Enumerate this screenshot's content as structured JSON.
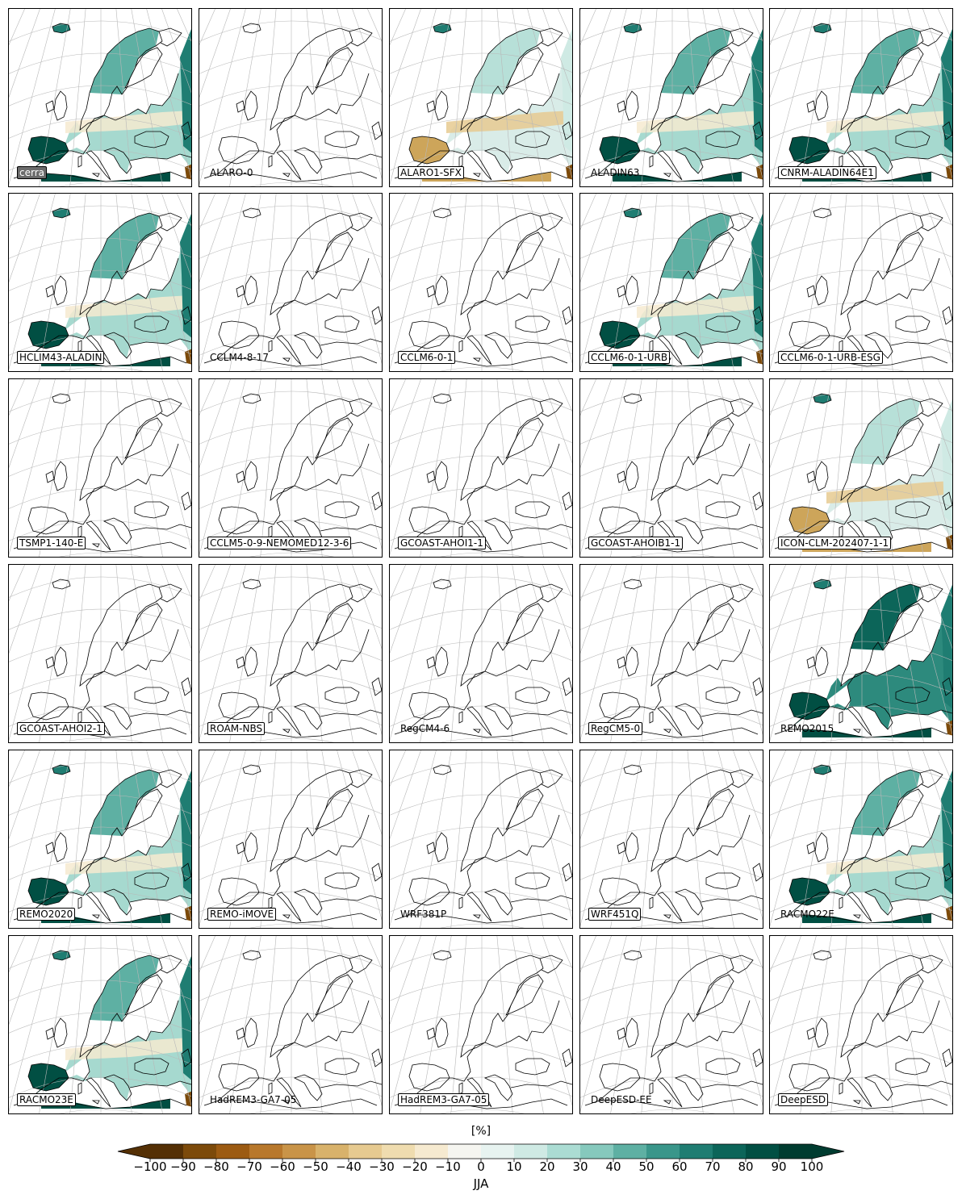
{
  "panels": [
    {
      "label": "cerra",
      "style": "ref",
      "fill": "pos"
    },
    {
      "label": "ALARO-0",
      "style": "plain",
      "fill": "none"
    },
    {
      "label": "ALARO1-SFX",
      "style": "boxed",
      "fill": "mixed"
    },
    {
      "label": "ALADIN63",
      "style": "plain",
      "fill": "pos"
    },
    {
      "label": "CNRM-ALADIN64E1",
      "style": "boxed",
      "fill": "pos"
    },
    {
      "label": "HCLIM43-ALADIN",
      "style": "boxed",
      "fill": "pos"
    },
    {
      "label": "CCLM4-8-17",
      "style": "plain",
      "fill": "none"
    },
    {
      "label": "CCLM6-0-1",
      "style": "boxed",
      "fill": "none"
    },
    {
      "label": "CCLM6-0-1-URB",
      "style": "boxed",
      "fill": "pos"
    },
    {
      "label": "CCLM6-0-1-URB-ESG",
      "style": "boxed",
      "fill": "none"
    },
    {
      "label": "TSMP1-140-E",
      "style": "boxed",
      "fill": "none"
    },
    {
      "label": "CCLM5-0-9-NEMOMED12-3-6",
      "style": "boxed",
      "fill": "none"
    },
    {
      "label": "GCOAST-AHOI1-1",
      "style": "boxed",
      "fill": "none"
    },
    {
      "label": "GCOAST-AHOIB1-1",
      "style": "boxed",
      "fill": "none"
    },
    {
      "label": "ICON-CLM-202407-1-1",
      "style": "boxed",
      "fill": "mixed"
    },
    {
      "label": "GCOAST-AHOI2-1",
      "style": "boxed",
      "fill": "none"
    },
    {
      "label": "ROAM-NBS",
      "style": "boxed",
      "fill": "none"
    },
    {
      "label": "RegCM4-6",
      "style": "plain",
      "fill": "none"
    },
    {
      "label": "RegCM5-0",
      "style": "boxed",
      "fill": "none"
    },
    {
      "label": "REMO2015",
      "style": "plain",
      "fill": "strong"
    },
    {
      "label": "REMO2020",
      "style": "boxed",
      "fill": "pos"
    },
    {
      "label": "REMO-iMOVE",
      "style": "boxed",
      "fill": "none"
    },
    {
      "label": "WRF381P",
      "style": "plain",
      "fill": "none"
    },
    {
      "label": "WRF451Q",
      "style": "boxed",
      "fill": "none"
    },
    {
      "label": "RACMO22E",
      "style": "plain",
      "fill": "pos"
    },
    {
      "label": "RACMO23E",
      "style": "boxed",
      "fill": "pos"
    },
    {
      "label": "HadREM3-GA7-05",
      "style": "plain",
      "fill": "none"
    },
    {
      "label": "HadREM3-GA7-05",
      "style": "boxed",
      "fill": "none"
    },
    {
      "label": "DeepESD-EE",
      "style": "plain",
      "fill": "none"
    },
    {
      "label": "DeepESD",
      "style": "boxed",
      "fill": "none"
    }
  ],
  "colorbar": {
    "units": "[%]",
    "season": "JJA",
    "ticks": [
      "−100",
      "−90",
      "−80",
      "−70",
      "−60",
      "−50",
      "−40",
      "−30",
      "−20",
      "−10",
      "0",
      "10",
      "20",
      "30",
      "40",
      "50",
      "60",
      "70",
      "80",
      "90",
      "100"
    ],
    "colors": [
      "#543005",
      "#7c4a0a",
      "#9c5b12",
      "#b8782c",
      "#c99448",
      "#d8b26b",
      "#e6ca90",
      "#efdcaf",
      "#f6ead0",
      "#f5f5f0",
      "#e7f3f0",
      "#cfeae4",
      "#abdcd3",
      "#86c9bd",
      "#5eb0a3",
      "#3a968a",
      "#1f7d72",
      "#0c6559",
      "#014f43",
      "#003c30"
    ],
    "extend_low_color": "#543005",
    "extend_high_color": "#003c30"
  }
}
